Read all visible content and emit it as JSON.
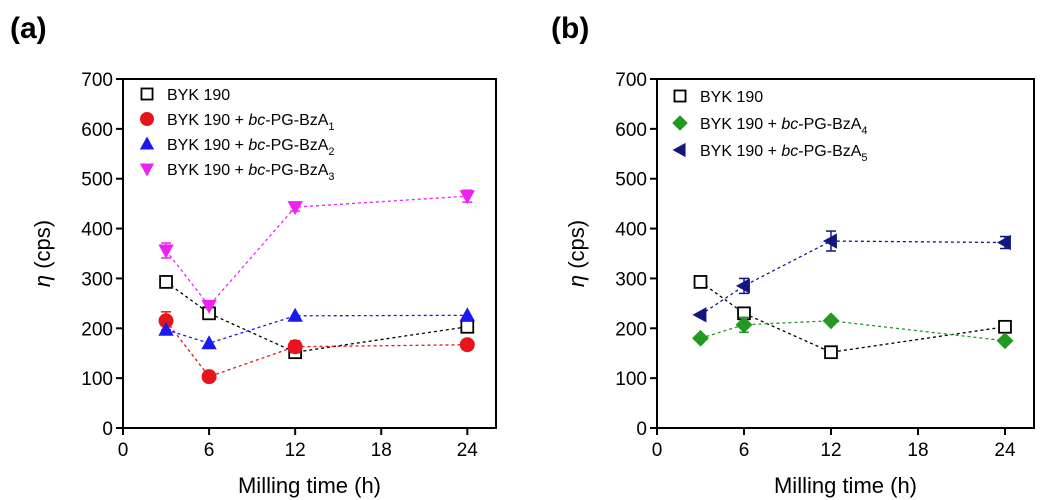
{
  "chart_data": [
    {
      "type": "line",
      "panel_label": "(a)",
      "xlabel": "Milling time (h)",
      "ylabel_symbol": "η",
      "ylabel_unit": " (cps)",
      "xlim": [
        0,
        26
      ],
      "ylim": [
        0,
        700
      ],
      "xticks": [
        0,
        6,
        12,
        18,
        24
      ],
      "yticks": [
        0,
        100,
        200,
        300,
        400,
        500,
        600,
        700
      ],
      "legend_position": "top-left",
      "grid": false,
      "series": [
        {
          "name_main": "BYK 190",
          "name_ital": "",
          "name_rest": "",
          "name_sub": "",
          "marker": "square-open",
          "color": "#000000",
          "x": [
            3,
            6,
            12,
            24
          ],
          "y": [
            293,
            230,
            152,
            203
          ],
          "err": [
            0,
            0,
            0,
            0
          ]
        },
        {
          "name_main": "BYK 190 + ",
          "name_ital": "bc",
          "name_rest": "-PG-BzA",
          "name_sub": "1",
          "marker": "circle",
          "color": "#e8141c",
          "x": [
            3,
            6,
            12,
            24
          ],
          "y": [
            215,
            103,
            163,
            167
          ],
          "err": [
            18,
            0,
            12,
            0
          ]
        },
        {
          "name_main": "BYK 190 + ",
          "name_ital": "bc",
          "name_rest": "-PG-BzA",
          "name_sub": "2",
          "marker": "triangle-up",
          "color": "#1a1aee",
          "x": [
            3,
            6,
            12,
            24
          ],
          "y": [
            197,
            170,
            225,
            226
          ],
          "err": [
            0,
            0,
            0,
            0
          ]
        },
        {
          "name_main": "BYK 190 + ",
          "name_ital": "bc",
          "name_rest": "-PG-BzA",
          "name_sub": "3",
          "marker": "triangle-down",
          "color": "#ee22ee",
          "x": [
            3,
            6,
            12,
            24
          ],
          "y": [
            356,
            245,
            443,
            465
          ],
          "err": [
            15,
            0,
            8,
            12
          ]
        }
      ]
    },
    {
      "type": "line",
      "panel_label": "(b)",
      "xlabel": "Milling time (h)",
      "ylabel_symbol": "η",
      "ylabel_unit": " (cps)",
      "xlim": [
        0,
        26
      ],
      "ylim": [
        0,
        700
      ],
      "xticks": [
        0,
        6,
        12,
        18,
        24
      ],
      "yticks": [
        0,
        100,
        200,
        300,
        400,
        500,
        600,
        700
      ],
      "legend_position": "top-left",
      "grid": false,
      "series": [
        {
          "name_main": "BYK 190",
          "name_ital": "",
          "name_rest": "",
          "name_sub": "",
          "marker": "square-open",
          "color": "#000000",
          "x": [
            3,
            6,
            12,
            24
          ],
          "y": [
            293,
            230,
            152,
            203
          ],
          "err": [
            0,
            0,
            0,
            0
          ]
        },
        {
          "name_main": "BYK 190 + ",
          "name_ital": "bc",
          "name_rest": "-PG-BzA",
          "name_sub": "4",
          "marker": "diamond",
          "color": "#229922",
          "x": [
            3,
            6,
            12,
            24
          ],
          "y": [
            180,
            207,
            215,
            175
          ],
          "err": [
            0,
            15,
            0,
            0
          ]
        },
        {
          "name_main": "BYK 190 + ",
          "name_ital": "bc",
          "name_rest": "-PG-BzA",
          "name_sub": "5",
          "marker": "triangle-left",
          "color": "#101880",
          "x": [
            3,
            6,
            12,
            24
          ],
          "y": [
            227,
            285,
            375,
            372
          ],
          "err": [
            0,
            15,
            20,
            12
          ]
        }
      ]
    }
  ]
}
